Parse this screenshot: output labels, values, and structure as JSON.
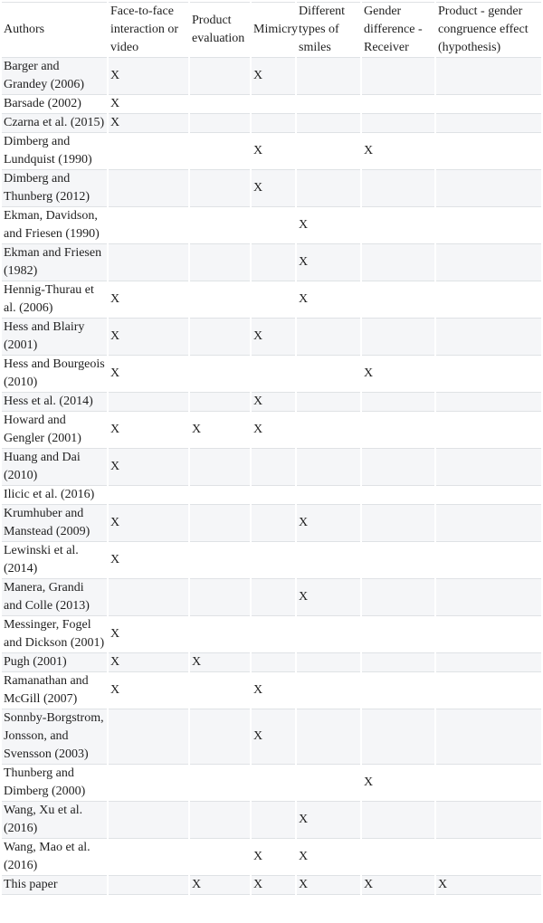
{
  "colors": {
    "stripe": "#f5f6f8",
    "border": "#dfe2e5",
    "text": "#1f1f1f",
    "background": "#ffffff"
  },
  "table": {
    "mark_symbol": "X",
    "columns": [
      {
        "label": "Authors"
      },
      {
        "label": "Face-to-face interaction or video"
      },
      {
        "label": "Product evaluation"
      },
      {
        "label": "Mimicry"
      },
      {
        "label": "Different types of smiles"
      },
      {
        "label": "Gender difference - Receiver"
      },
      {
        "label": "Product - gender congruence effect (hypothesis)"
      }
    ],
    "rows": [
      {
        "author": "Barger and Grandey (2006)",
        "cells": [
          "X",
          "",
          "X",
          "",
          "",
          ""
        ]
      },
      {
        "author": "Barsade (2002)",
        "cells": [
          "X",
          "",
          "",
          "",
          "",
          ""
        ]
      },
      {
        "author": "Czarna et al. (2015)",
        "cells": [
          "X",
          "",
          "",
          "",
          "",
          ""
        ]
      },
      {
        "author": "Dimberg and Lundquist (1990)",
        "cells": [
          "",
          "",
          "X",
          "",
          "X",
          ""
        ]
      },
      {
        "author": "Dimberg and Thunberg (2012)",
        "cells": [
          "",
          "",
          "X",
          "",
          "",
          ""
        ]
      },
      {
        "author": "Ekman, Davidson, and Friesen (1990)",
        "cells": [
          "",
          "",
          "",
          "X",
          "",
          ""
        ]
      },
      {
        "author": "Ekman and Friesen (1982)",
        "cells": [
          "",
          "",
          "",
          "X",
          "",
          ""
        ]
      },
      {
        "author": "Hennig-Thurau et al. (2006)",
        "cells": [
          "X",
          "",
          "",
          "X",
          "",
          ""
        ]
      },
      {
        "author": "Hess and Blairy (2001)",
        "cells": [
          "X",
          "",
          "X",
          "",
          "",
          ""
        ]
      },
      {
        "author": "Hess and Bourgeois (2010)",
        "cells": [
          "X",
          "",
          "",
          "",
          "X",
          ""
        ]
      },
      {
        "author": "Hess et al. (2014)",
        "cells": [
          "",
          "",
          "X",
          "",
          "",
          ""
        ]
      },
      {
        "author": "Howard and Gengler (2001)",
        "cells": [
          "X",
          "X",
          "X",
          "",
          "",
          ""
        ]
      },
      {
        "author": "Huang and Dai (2010)",
        "cells": [
          "X",
          "",
          "",
          "",
          "",
          ""
        ]
      },
      {
        "author": "Ilicic et al. (2016)",
        "cells": [
          "",
          "",
          "",
          "",
          "",
          ""
        ]
      },
      {
        "author": "Krumhuber and Manstead (2009)",
        "cells": [
          "X",
          "",
          "",
          "X",
          "",
          ""
        ]
      },
      {
        "author": "Lewinski et al. (2014)",
        "cells": [
          "X",
          "",
          "",
          "",
          "",
          ""
        ]
      },
      {
        "author": "Manera, Grandi and Colle (2013)",
        "cells": [
          "",
          "",
          "",
          "X",
          "",
          ""
        ]
      },
      {
        "author": "Messinger, Fogel and Dickson (2001)",
        "cells": [
          "X",
          "",
          "",
          "",
          "",
          ""
        ]
      },
      {
        "author": "Pugh (2001)",
        "cells": [
          "X",
          "X",
          "",
          "",
          "",
          ""
        ]
      },
      {
        "author": "Ramanathan and McGill (2007)",
        "cells": [
          "X",
          "",
          "X",
          "",
          "",
          ""
        ]
      },
      {
        "author": "Sonnby-Borgstrom, Jonsson, and Svensson (2003)",
        "cells": [
          "",
          "",
          "X",
          "",
          "",
          ""
        ]
      },
      {
        "author": "Thunberg and Dimberg (2000)",
        "cells": [
          "",
          "",
          "",
          "",
          "X",
          ""
        ]
      },
      {
        "author": "Wang, Xu et al. (2016)",
        "cells": [
          "",
          "",
          "",
          "X",
          "",
          ""
        ]
      },
      {
        "author": "Wang, Mao et al. (2016)",
        "cells": [
          "",
          "",
          "X",
          "X",
          "",
          ""
        ]
      },
      {
        "author": "This paper",
        "cells": [
          "",
          "X",
          "X",
          "X",
          "X",
          "X"
        ]
      }
    ]
  }
}
